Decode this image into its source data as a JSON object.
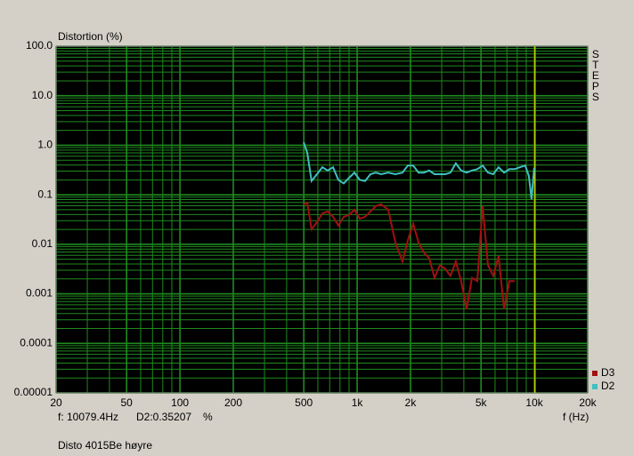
{
  "chart_data": {
    "type": "line",
    "ylabel": "Distortion (%)",
    "xlabel": "f (Hz)",
    "side_label": "STEPS",
    "note": "Disto 4015Be høyre",
    "log_x": true,
    "log_y": true,
    "grid": true,
    "grid_color": "#1f8a1f",
    "plot_background": "#000000",
    "legend_position": "lower right",
    "xlim": [
      20,
      20000
    ],
    "ylim": [
      1e-05,
      100
    ],
    "xticks": [
      20,
      50,
      100,
      200,
      500,
      {
        "value": 1000,
        "label": "1k"
      },
      {
        "value": 2000,
        "label": "2k"
      },
      {
        "value": 5000,
        "label": "5k"
      },
      {
        "value": 10000,
        "label": "10k"
      },
      {
        "value": 20000,
        "label": "20k"
      }
    ],
    "yticks": [
      {
        "value": 100,
        "label": "100.0"
      },
      {
        "value": 10,
        "label": "10.0"
      },
      {
        "value": 1,
        "label": "1.0"
      },
      0.1,
      0.01,
      0.001,
      0.0001,
      1e-05
    ],
    "cursor": {
      "frequency": 10079.4,
      "color": "#c8c800",
      "readout": "f: 10079.4Hz",
      "value_text": "D2:0.35207",
      "unit": "%"
    },
    "x": [
      499,
      523,
      553,
      593,
      636,
      682,
      731,
      783,
      840,
      900,
      965,
      1034,
      1109,
      1188,
      1274,
      1365,
      1497,
      1643,
      1803,
      1932,
      2071,
      2219,
      2378,
      2548,
      2733,
      2929,
      3139,
      3364,
      3606,
      3864,
      4146,
      4443,
      4762,
      5103,
      5470,
      5862,
      6281,
      6745,
      7228,
      7745,
      8299,
      8892,
      9311,
      9638,
      9977
    ],
    "series": [
      {
        "name": "D3",
        "color": "#a01010",
        "values": [
          0.064,
          0.069,
          0.02,
          0.028,
          0.042,
          0.046,
          0.036,
          0.024,
          0.036,
          0.039,
          0.05,
          0.033,
          0.036,
          0.046,
          0.059,
          0.064,
          0.05,
          0.011,
          0.0045,
          0.012,
          0.026,
          0.011,
          0.0068,
          0.0053,
          0.0021,
          0.0038,
          0.0032,
          0.0023,
          0.0045,
          0.0018,
          0.00049,
          0.0021,
          0.0018,
          0.059,
          0.0038,
          0.0023,
          0.0058,
          0.00049,
          0.0018,
          0.0018,
          null,
          null,
          null,
          null,
          null
        ]
      },
      {
        "name": "D2",
        "color": "#40c0c0",
        "values": [
          1.15,
          0.7,
          0.19,
          0.26,
          0.36,
          0.31,
          0.36,
          0.2,
          0.17,
          0.22,
          0.28,
          0.2,
          0.19,
          0.26,
          0.28,
          0.26,
          0.28,
          0.26,
          0.28,
          0.39,
          0.39,
          0.28,
          0.28,
          0.31,
          0.26,
          0.26,
          0.26,
          0.28,
          0.43,
          0.31,
          0.28,
          0.31,
          0.33,
          0.39,
          0.28,
          0.26,
          0.36,
          0.28,
          0.33,
          0.33,
          0.36,
          0.39,
          0.24,
          0.082,
          0.35
        ]
      }
    ]
  }
}
